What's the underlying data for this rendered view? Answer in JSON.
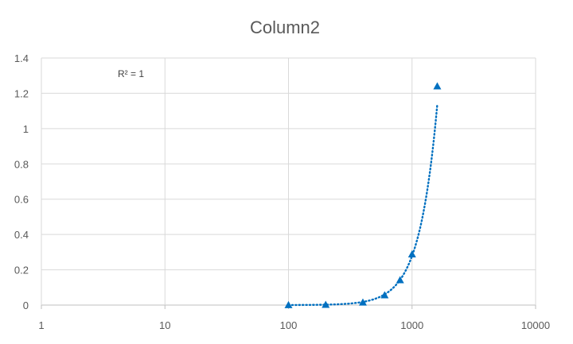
{
  "chart_data": {
    "type": "scatter",
    "title": "Column2",
    "xlabel": "",
    "ylabel": "",
    "x_scale": "log",
    "xlim": [
      1,
      10000
    ],
    "ylim": [
      0,
      1.4
    ],
    "x_ticks": [
      "1",
      "10",
      "100",
      "1000",
      "10000"
    ],
    "y_ticks": [
      "0",
      "0.2",
      "0.4",
      "0.6",
      "0.8",
      "1",
      "1.2",
      "1.4"
    ],
    "grid": true,
    "legend": "none",
    "annotation": "R² = 1",
    "trendline": "dotted",
    "marker": "triangle",
    "color": "#0070c0",
    "points": [
      {
        "x": 100,
        "y": 0.0003
      },
      {
        "x": 200,
        "y": 0.0024
      },
      {
        "x": 400,
        "y": 0.0154
      },
      {
        "x": 600,
        "y": 0.056
      },
      {
        "x": 800,
        "y": 0.142
      },
      {
        "x": 1000,
        "y": 0.288
      },
      {
        "x": 1600,
        "y": 1.24
      }
    ]
  }
}
